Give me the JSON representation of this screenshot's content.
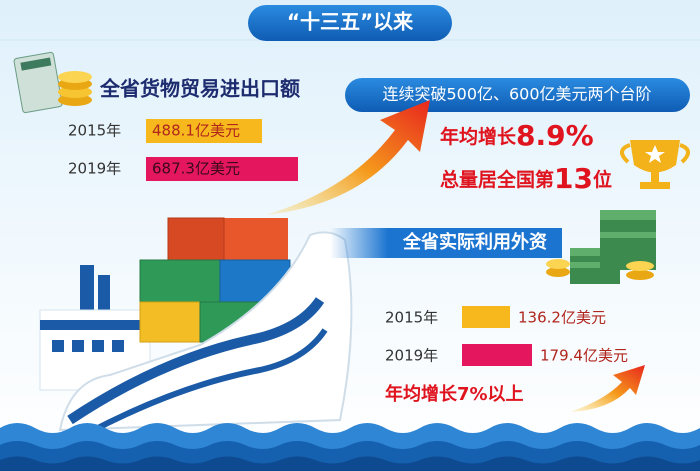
{
  "header": {
    "title": "“十三五”以来"
  },
  "trade": {
    "title": "全省货物贸易进出口额",
    "rows": [
      {
        "year": "2015年",
        "value": "488.1亿美元"
      },
      {
        "year": "2019年",
        "value": "687.3亿美元"
      }
    ],
    "banner": "连续突破500亿、600亿美元两个台阶",
    "growth": {
      "prefix": "年均增长",
      "value": "8.9%"
    },
    "rank": {
      "prefix": "总量居全国第",
      "value": "13",
      "suffix": "位"
    }
  },
  "fdi": {
    "title": "全省实际利用外资",
    "rows": [
      {
        "year": "2015年",
        "value": "136.2亿美元"
      },
      {
        "year": "2019年",
        "value": "179.4亿美元"
      }
    ],
    "growth": "年均增长7%以上"
  }
}
